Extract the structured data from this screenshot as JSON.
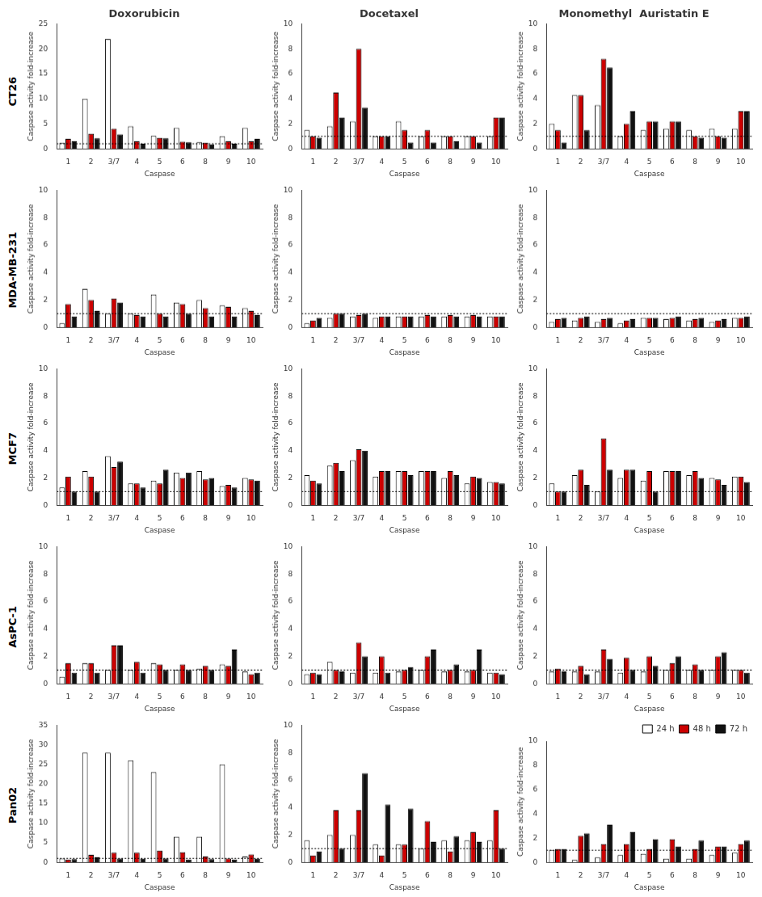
{
  "chart_data": [
    {
      "type": "bar",
      "title": "Doxorubicin",
      "annotations": [
        "CT26"
      ],
      "xlabel": "Caspase",
      "ylabel": "Caspase activity fold-increase",
      "categories": [
        "1",
        "2",
        "3/7",
        "4",
        "5",
        "6",
        "8",
        "9",
        "10"
      ],
      "series": [
        {
          "color": "#ffffff",
          "values": [
            1.2,
            10.0,
            22.0,
            4.5,
            2.6,
            4.2,
            1.3,
            2.5,
            4.2
          ]
        },
        {
          "color": "#cc0000",
          "values": [
            2.0,
            3.0,
            4.0,
            1.5,
            2.2,
            1.4,
            1.2,
            1.5,
            1.5
          ]
        },
        {
          "color": "#111111",
          "values": [
            1.5,
            2.1,
            2.9,
            1.0,
            2.1,
            1.3,
            0.9,
            1.0,
            2.0
          ]
        }
      ],
      "ylim": [
        0,
        25
      ],
      "yticks": [
        0,
        5,
        10,
        15,
        20,
        25
      ],
      "grid": false,
      "reference_line": 1.0
    },
    {
      "type": "bar",
      "title": "Docetaxel",
      "xlabel": "Caspase",
      "ylabel": "Caspase activity fold-increase",
      "categories": [
        "1",
        "2",
        "3/7",
        "4",
        "5",
        "6",
        "8",
        "9",
        "10"
      ],
      "series": [
        {
          "color": "#ffffff",
          "values": [
            1.5,
            1.8,
            2.2,
            1.0,
            2.2,
            1.0,
            1.0,
            1.0,
            1.0
          ]
        },
        {
          "color": "#cc0000",
          "values": [
            1.0,
            4.5,
            8.0,
            1.0,
            1.5,
            1.5,
            1.0,
            1.0,
            2.5
          ]
        },
        {
          "color": "#111111",
          "values": [
            0.9,
            2.5,
            3.3,
            1.0,
            0.5,
            0.5,
            0.6,
            0.5,
            2.5
          ]
        }
      ],
      "ylim": [
        0,
        10
      ],
      "yticks": [
        0,
        2,
        4,
        6,
        8,
        10
      ],
      "grid": false,
      "reference_line": 1.0
    },
    {
      "type": "bar",
      "title": "Monomethyl  Auristatin E",
      "xlabel": "Caspase",
      "ylabel": "Caspase activity fold-increase",
      "categories": [
        "1",
        "2",
        "3/7",
        "4",
        "5",
        "6",
        "8",
        "9",
        "10"
      ],
      "series": [
        {
          "color": "#ffffff",
          "values": [
            2.0,
            4.3,
            3.5,
            1.0,
            1.5,
            1.6,
            1.5,
            1.6,
            1.6
          ]
        },
        {
          "color": "#cc0000",
          "values": [
            1.5,
            4.3,
            7.2,
            2.0,
            2.2,
            2.2,
            1.0,
            1.0,
            3.0
          ]
        },
        {
          "color": "#111111",
          "values": [
            0.5,
            1.5,
            6.5,
            3.0,
            2.2,
            2.2,
            0.9,
            0.9,
            3.0
          ]
        }
      ],
      "ylim": [
        0,
        10
      ],
      "yticks": [
        0,
        2,
        4,
        6,
        8,
        10
      ],
      "grid": false,
      "reference_line": 1.0
    },
    {
      "type": "bar",
      "annotations": [
        "MDA-MB-231"
      ],
      "xlabel": "Caspase",
      "ylabel": "Caspase activity fold-increase",
      "categories": [
        "1",
        "2",
        "3/7",
        "4",
        "5",
        "6",
        "8",
        "9",
        "10"
      ],
      "series": [
        {
          "color": "#ffffff",
          "values": [
            0.3,
            2.8,
            1.0,
            1.0,
            2.4,
            1.8,
            2.0,
            1.6,
            1.4
          ]
        },
        {
          "color": "#cc0000",
          "values": [
            1.7,
            2.0,
            2.1,
            0.9,
            1.0,
            1.7,
            1.4,
            1.5,
            1.2
          ]
        },
        {
          "color": "#111111",
          "values": [
            0.8,
            1.2,
            1.8,
            0.8,
            0.8,
            1.0,
            0.8,
            0.8,
            0.9
          ]
        }
      ],
      "ylim": [
        0,
        10
      ],
      "yticks": [
        0,
        2,
        4,
        6,
        8,
        10
      ],
      "grid": false,
      "reference_line": 1.0
    },
    {
      "type": "bar",
      "xlabel": "Caspase",
      "ylabel": "Caspase activity fold-increase",
      "categories": [
        "1",
        "2",
        "3/7",
        "4",
        "5",
        "6",
        "8",
        "9",
        "10"
      ],
      "series": [
        {
          "color": "#ffffff",
          "values": [
            0.3,
            0.7,
            0.8,
            0.7,
            0.8,
            0.8,
            0.8,
            0.8,
            0.8
          ]
        },
        {
          "color": "#cc0000",
          "values": [
            0.5,
            1.0,
            0.9,
            0.8,
            0.8,
            0.9,
            0.9,
            0.9,
            0.8
          ]
        },
        {
          "color": "#111111",
          "values": [
            0.7,
            1.0,
            1.0,
            0.8,
            0.8,
            0.8,
            0.8,
            0.8,
            0.8
          ]
        }
      ],
      "ylim": [
        0,
        10
      ],
      "yticks": [
        0,
        2,
        4,
        6,
        8,
        10
      ],
      "grid": false,
      "reference_line": 1.0
    },
    {
      "type": "bar",
      "xlabel": "Caspase",
      "ylabel": "Caspase activity fold-increase",
      "categories": [
        "1",
        "2",
        "3/7",
        "4",
        "5",
        "6",
        "8",
        "9",
        "10"
      ],
      "series": [
        {
          "color": "#ffffff",
          "values": [
            0.4,
            0.5,
            0.4,
            0.3,
            0.7,
            0.6,
            0.5,
            0.4,
            0.7
          ]
        },
        {
          "color": "#cc0000",
          "values": [
            0.6,
            0.7,
            0.6,
            0.5,
            0.7,
            0.7,
            0.6,
            0.5,
            0.7
          ]
        },
        {
          "color": "#111111",
          "values": [
            0.7,
            0.8,
            0.7,
            0.6,
            0.7,
            0.8,
            0.7,
            0.6,
            0.8
          ]
        }
      ],
      "ylim": [
        0,
        10
      ],
      "yticks": [
        0,
        2,
        4,
        6,
        8,
        10
      ],
      "grid": false,
      "reference_line": 1.0
    },
    {
      "type": "bar",
      "annotations": [
        "MCF7"
      ],
      "xlabel": "Caspase",
      "ylabel": "Caspase activity fold-increase",
      "categories": [
        "1",
        "2",
        "3/7",
        "4",
        "5",
        "6",
        "8",
        "9",
        "10"
      ],
      "series": [
        {
          "color": "#ffffff",
          "values": [
            1.3,
            2.5,
            3.6,
            1.6,
            1.8,
            2.4,
            2.5,
            1.4,
            2.0
          ]
        },
        {
          "color": "#cc0000",
          "values": [
            2.1,
            2.1,
            2.8,
            1.6,
            1.6,
            2.0,
            1.9,
            1.5,
            1.9
          ]
        },
        {
          "color": "#111111",
          "values": [
            1.0,
            1.0,
            3.2,
            1.3,
            2.6,
            2.4,
            2.0,
            1.3,
            1.8
          ]
        }
      ],
      "ylim": [
        0,
        10
      ],
      "yticks": [
        0,
        2,
        4,
        6,
        8,
        10
      ],
      "grid": false,
      "reference_line": 1.0
    },
    {
      "type": "bar",
      "xlabel": "Caspase",
      "ylabel": "Caspase activity fold-increase",
      "categories": [
        "1",
        "2",
        "3/7",
        "4",
        "5",
        "6",
        "8",
        "9",
        "10"
      ],
      "series": [
        {
          "color": "#ffffff",
          "values": [
            2.2,
            2.9,
            3.3,
            2.1,
            2.5,
            2.5,
            2.0,
            1.6,
            1.7
          ]
        },
        {
          "color": "#cc0000",
          "values": [
            1.8,
            3.1,
            4.1,
            2.5,
            2.5,
            2.5,
            2.5,
            2.1,
            1.7
          ]
        },
        {
          "color": "#111111",
          "values": [
            1.6,
            2.5,
            4.0,
            2.5,
            2.2,
            2.5,
            2.2,
            2.0,
            1.6
          ]
        }
      ],
      "ylim": [
        0,
        10
      ],
      "yticks": [
        0,
        2,
        4,
        6,
        8,
        10
      ],
      "grid": false,
      "reference_line": 1.0
    },
    {
      "type": "bar",
      "xlabel": "Caspase",
      "ylabel": "Caspase activity fold-increase",
      "categories": [
        "1",
        "2",
        "3/7",
        "4",
        "5",
        "6",
        "8",
        "9",
        "10"
      ],
      "series": [
        {
          "color": "#ffffff",
          "values": [
            1.6,
            2.2,
            1.0,
            2.0,
            1.8,
            2.5,
            2.2,
            2.0,
            2.1
          ]
        },
        {
          "color": "#cc0000",
          "values": [
            1.0,
            2.6,
            4.9,
            2.6,
            2.5,
            2.5,
            2.5,
            1.9,
            2.1
          ]
        },
        {
          "color": "#111111",
          "values": [
            1.0,
            1.5,
            2.6,
            2.6,
            1.0,
            2.5,
            2.0,
            1.5,
            1.7
          ]
        }
      ],
      "ylim": [
        0,
        10
      ],
      "yticks": [
        0,
        2,
        4,
        6,
        8,
        10
      ],
      "grid": false,
      "reference_line": 1.0
    },
    {
      "type": "bar",
      "annotations": [
        "AsPC-1"
      ],
      "xlabel": "Caspase",
      "ylabel": "Caspase activity fold-increase",
      "categories": [
        "1",
        "2",
        "3/7",
        "4",
        "5",
        "6",
        "8",
        "9",
        "10"
      ],
      "series": [
        {
          "color": "#ffffff",
          "values": [
            0.5,
            1.5,
            1.0,
            1.0,
            1.5,
            1.0,
            1.1,
            1.4,
            0.9
          ]
        },
        {
          "color": "#cc0000",
          "values": [
            1.5,
            1.5,
            2.8,
            1.6,
            1.4,
            1.4,
            1.3,
            1.3,
            0.7
          ]
        },
        {
          "color": "#111111",
          "values": [
            0.8,
            0.8,
            2.8,
            0.8,
            1.0,
            1.0,
            1.0,
            2.5,
            0.8
          ]
        }
      ],
      "ylim": [
        0,
        10
      ],
      "yticks": [
        0,
        2,
        4,
        6,
        8,
        10
      ],
      "grid": false,
      "reference_line": 1.0
    },
    {
      "type": "bar",
      "xlabel": "Caspase",
      "ylabel": "Caspase activity fold-increase",
      "categories": [
        "1",
        "2",
        "3/7",
        "4",
        "5",
        "6",
        "8",
        "9",
        "10"
      ],
      "series": [
        {
          "color": "#ffffff",
          "values": [
            0.7,
            1.6,
            0.8,
            0.8,
            0.9,
            1.0,
            0.9,
            0.9,
            0.8
          ]
        },
        {
          "color": "#cc0000",
          "values": [
            0.8,
            1.0,
            3.0,
            2.0,
            1.0,
            2.0,
            1.0,
            1.0,
            0.8
          ]
        },
        {
          "color": "#111111",
          "values": [
            0.7,
            0.9,
            2.0,
            0.8,
            1.2,
            2.5,
            1.4,
            2.5,
            0.7
          ]
        }
      ],
      "ylim": [
        0,
        10
      ],
      "yticks": [
        0,
        2,
        4,
        6,
        8,
        10
      ],
      "grid": false,
      "reference_line": 1.0
    },
    {
      "type": "bar",
      "xlabel": "Caspase",
      "ylabel": "Caspase activity fold-increase",
      "categories": [
        "1",
        "2",
        "3/7",
        "4",
        "5",
        "6",
        "8",
        "9",
        "10"
      ],
      "series": [
        {
          "color": "#ffffff",
          "values": [
            0.9,
            0.9,
            0.9,
            0.8,
            0.9,
            1.0,
            1.0,
            1.0,
            1.0
          ]
        },
        {
          "color": "#cc0000",
          "values": [
            1.1,
            1.3,
            2.5,
            1.9,
            2.0,
            1.5,
            1.4,
            2.0,
            1.0
          ]
        },
        {
          "color": "#111111",
          "values": [
            0.9,
            0.7,
            1.8,
            1.0,
            1.3,
            2.0,
            1.0,
            2.3,
            0.8
          ]
        }
      ],
      "ylim": [
        0,
        10
      ],
      "yticks": [
        0,
        2,
        4,
        6,
        8,
        10
      ],
      "grid": false,
      "reference_line": 1.0
    },
    {
      "type": "bar",
      "annotations": [
        "Pan02"
      ],
      "xlabel": "Caspase",
      "ylabel": "Caspase activity fold-increase",
      "categories": [
        "1",
        "2",
        "3/7",
        "4",
        "5",
        "6",
        "8",
        "9",
        "10"
      ],
      "series": [
        {
          "color": "#ffffff",
          "values": [
            1.0,
            28.0,
            28.0,
            26.0,
            23.0,
            6.5,
            6.5,
            25.0,
            1.5
          ]
        },
        {
          "color": "#cc0000",
          "values": [
            0.7,
            1.9,
            2.5,
            2.5,
            3.0,
            2.6,
            1.5,
            1.0,
            2.0
          ]
        },
        {
          "color": "#111111",
          "values": [
            0.8,
            1.3,
            1.0,
            0.9,
            1.0,
            0.7,
            0.8,
            0.7,
            0.9
          ]
        }
      ],
      "ylim": [
        0,
        35
      ],
      "yticks": [
        0,
        5,
        10,
        15,
        20,
        25,
        30,
        35
      ],
      "grid": false,
      "reference_line": 1.0
    },
    {
      "type": "bar",
      "xlabel": "Caspase",
      "ylabel": "Caspase activity fold-increase",
      "categories": [
        "1",
        "2",
        "3/7",
        "4",
        "5",
        "6",
        "8",
        "9",
        "10"
      ],
      "series": [
        {
          "color": "#ffffff",
          "values": [
            1.6,
            2.0,
            2.0,
            1.3,
            1.3,
            1.0,
            1.6,
            1.6,
            1.6
          ]
        },
        {
          "color": "#cc0000",
          "values": [
            0.5,
            3.8,
            3.8,
            0.5,
            1.3,
            3.0,
            0.8,
            2.2,
            3.8
          ]
        },
        {
          "color": "#111111",
          "values": [
            0.8,
            1.0,
            6.5,
            4.2,
            3.9,
            1.5,
            1.9,
            1.5,
            1.0
          ]
        }
      ],
      "ylim": [
        0,
        10
      ],
      "yticks": [
        0,
        2,
        4,
        6,
        8,
        10
      ],
      "grid": false,
      "reference_line": 1.0
    },
    {
      "type": "bar",
      "xlabel": "Caspase",
      "ylabel": "Caspase activity fold-increase",
      "categories": [
        "1",
        "2",
        "3/7",
        "4",
        "5",
        "6",
        "8",
        "9",
        "10"
      ],
      "series": [
        {
          "name": "24 h",
          "color": "#ffffff",
          "values": [
            1.0,
            0.2,
            0.4,
            0.6,
            0.7,
            0.3,
            0.3,
            0.6,
            0.8
          ]
        },
        {
          "name": "48 h",
          "color": "#cc0000",
          "values": [
            1.1,
            2.2,
            1.5,
            1.5,
            1.1,
            1.9,
            1.1,
            1.3,
            1.5
          ]
        },
        {
          "name": "72 h",
          "color": "#111111",
          "values": [
            1.1,
            2.4,
            3.1,
            2.5,
            1.9,
            1.3,
            1.8,
            1.3,
            1.8
          ]
        }
      ],
      "ylim": [
        0,
        10
      ],
      "yticks": [
        0,
        2,
        4,
        6,
        8,
        10
      ],
      "grid": false,
      "reference_line": 1.0,
      "legend": "upper right"
    }
  ]
}
